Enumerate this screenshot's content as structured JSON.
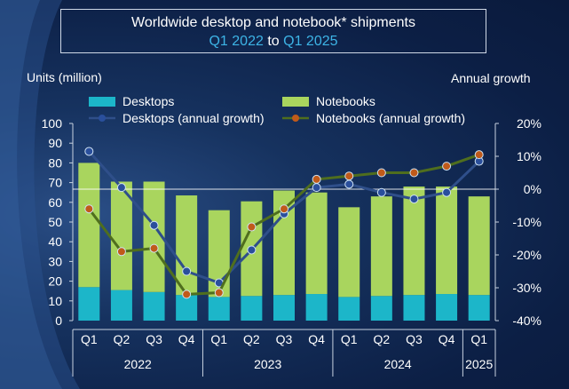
{
  "title": {
    "line1": "Worldwide desktop and notebook* shipments",
    "start": "Q1 2022",
    "mid": "to",
    "end": "Q1 2025"
  },
  "axes": {
    "left_title": "Units (million)",
    "right_title": "Annual growth"
  },
  "legend": {
    "desktops": "Desktops",
    "notebooks": "Notebooks",
    "desktops_growth": "Desktops (annual growth)",
    "notebooks_growth": "Notebooks (annual growth)"
  },
  "colors": {
    "desktops": "#1cb6c9",
    "notebooks": "#a9d55e",
    "desktops_line": "#2f4f8a",
    "notebooks_line": "#4f6e1e",
    "desktops_marker": "#2a4f9c",
    "notebooks_marker": "#c05a1a",
    "accent": "#3db4e6"
  },
  "chart_data": {
    "type": "bar",
    "stacked": true,
    "categories": [
      "Q1",
      "Q2",
      "Q3",
      "Q4",
      "Q1",
      "Q2",
      "Q3",
      "Q4",
      "Q1",
      "Q2",
      "Q3",
      "Q4",
      "Q1"
    ],
    "years": [
      {
        "label": "2022",
        "quarters": 4
      },
      {
        "label": "2023",
        "quarters": 4
      },
      {
        "label": "2024",
        "quarters": 4
      },
      {
        "label": "2025",
        "quarters": 1
      }
    ],
    "series": [
      {
        "name": "Desktops",
        "values": [
          17,
          15.5,
          14.5,
          13,
          12,
          12.5,
          13,
          13.5,
          12,
          12.5,
          13,
          13.5,
          13
        ]
      },
      {
        "name": "Notebooks",
        "values": [
          63,
          55,
          56,
          50.5,
          44,
          48,
          53,
          51.5,
          45.5,
          50.5,
          55,
          54.5,
          50
        ]
      }
    ],
    "growth_series": [
      {
        "name": "Desktops (annual growth)",
        "values": [
          11.5,
          0.5,
          -11,
          -25,
          -28.5,
          -18.5,
          -7.5,
          0.5,
          1.5,
          -1,
          -3,
          -1,
          8.5
        ]
      },
      {
        "name": "Notebooks (annual growth)",
        "values": [
          -6,
          -19,
          -18,
          -32,
          -31.5,
          -11.5,
          -6,
          3,
          4,
          5,
          5,
          7,
          10.5
        ]
      }
    ],
    "ylim": [
      0,
      100
    ],
    "yticks": [
      0,
      10,
      20,
      30,
      40,
      50,
      60,
      70,
      80,
      90,
      100
    ],
    "y2lim": [
      -40,
      20
    ],
    "y2ticks": [
      "-40%",
      "-30%",
      "-20%",
      "-10%",
      "0%",
      "10%",
      "20%"
    ],
    "y2tick_values": [
      -40,
      -30,
      -20,
      -10,
      0,
      10,
      20
    ]
  }
}
